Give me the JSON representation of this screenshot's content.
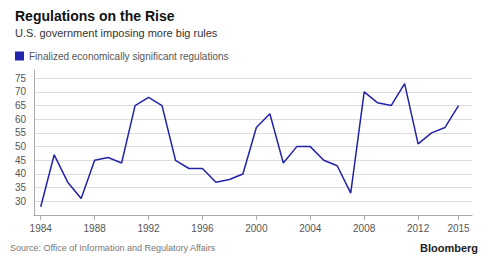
{
  "chart_data": {
    "type": "line",
    "title": "Regulations on the Rise",
    "subtitle": "U.S. government imposing more big rules",
    "annotations": [
      "Source: Office of Information and Regulatory Affairs",
      "Bloomberg"
    ],
    "x": [
      1984,
      1985,
      1986,
      1987,
      1988,
      1989,
      1990,
      1991,
      1992,
      1993,
      1994,
      1995,
      1996,
      1997,
      1998,
      1999,
      2000,
      2001,
      2002,
      2003,
      2004,
      2005,
      2006,
      2007,
      2008,
      2009,
      2010,
      2011,
      2012,
      2013,
      2014,
      2015
    ],
    "series": [
      {
        "name": "Finalized economically significant regulations",
        "color": "#2222AA",
        "values": [
          28,
          47,
          37,
          31,
          45,
          46,
          44,
          65,
          68,
          65,
          45,
          42,
          42,
          37,
          38,
          40,
          57,
          62,
          44,
          50,
          50,
          45,
          43,
          33,
          70,
          66,
          65,
          73,
          51,
          55,
          57,
          65
        ]
      }
    ],
    "xlim": [
      1983.5,
      2016.0
    ],
    "xticks": [
      1984,
      1988,
      1992,
      1996,
      2000,
      2004,
      2008,
      2012,
      2015
    ],
    "ylim": [
      25,
      78
    ],
    "yticks": [
      30,
      35,
      40,
      45,
      50,
      55,
      60,
      65,
      70,
      75
    ],
    "grid": true,
    "legend": "upper left"
  }
}
